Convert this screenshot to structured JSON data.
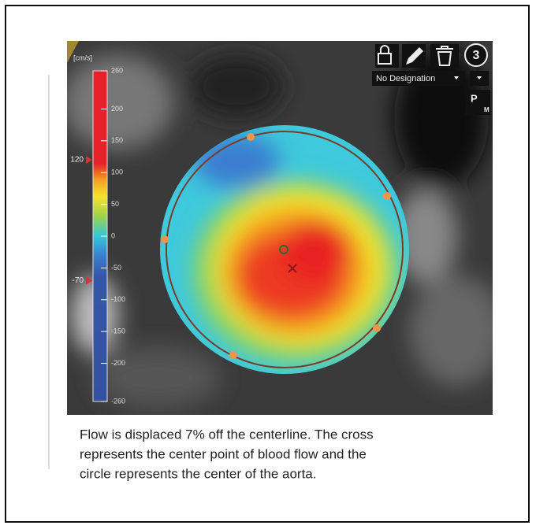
{
  "colorbar": {
    "unit": "[cm/s]",
    "ticks": [
      260,
      200,
      150,
      100,
      50,
      0,
      -50,
      -100,
      -150,
      -200,
      -260
    ],
    "markers": [
      120,
      -70
    ]
  },
  "toolbar": {
    "badge": "3",
    "designation": "No Designation",
    "plane": "P",
    "plane_sub": "M"
  },
  "caption": [
    "Flow is displaced 7% off the centerline. The cross",
    "represents the center point of blood flow and the",
    "circle represents the center of the aorta."
  ]
}
